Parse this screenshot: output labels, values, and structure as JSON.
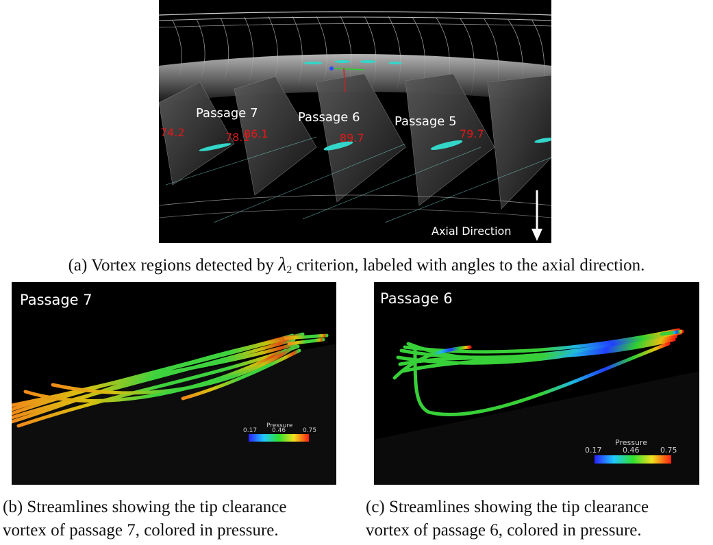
{
  "figure_a": {
    "passage_labels": [
      "Passage 7",
      "Passage 6",
      "Passage 5"
    ],
    "angle_labels": [
      "74.2",
      "78.1",
      "86.1",
      "89.7",
      "79.7"
    ],
    "axial_label": "Axial Direction",
    "caption_prefix": "(a) Vortex regions detected by ",
    "caption_symbol": "λ",
    "caption_subscript": "2",
    "caption_suffix": " criterion, labeled with angles to the axial direction."
  },
  "figure_b": {
    "title": "Passage 7",
    "colorbar": {
      "label": "Pressure",
      "min": "0.17",
      "mid": "0.46",
      "max": "0.75"
    },
    "caption_line1": "(b) Streamlines showing the tip clearance",
    "caption_line2": "vortex of passage 7, colored in pressure."
  },
  "figure_c": {
    "title": "Passage 6",
    "colorbar": {
      "label": "Pressure",
      "min": "0.17",
      "mid": "0.46",
      "max": "0.75"
    },
    "caption_line1": "(c) Streamlines showing the tip clearance",
    "caption_line2": "vortex of passage 6, colored in pressure."
  },
  "colors": {
    "vortex": "#33d6c8",
    "angle_text": "#e01818",
    "background": "#000000"
  }
}
